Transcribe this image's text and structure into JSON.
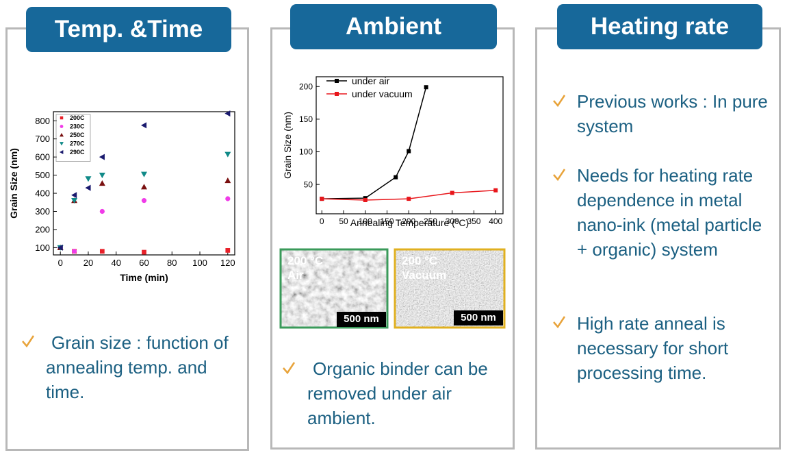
{
  "panels": [
    {
      "title": "Temp. &Time",
      "bullets": [
        "Grain size : function of annealing temp. and time."
      ]
    },
    {
      "title": "Ambient",
      "images": [
        {
          "temp": "200 °C",
          "ambient": "Air",
          "scale": "500 nm"
        },
        {
          "temp": "200 °C",
          "ambient": "Vacuum",
          "scale": "500 nm"
        }
      ],
      "bullets": [
        "Organic binder can be removed under air ambient."
      ]
    },
    {
      "title": "Heating rate",
      "bullets": [
        "Previous works : In pure system",
        "Needs for heating rate dependence in metal nano-ink (metal particle + organic) system",
        "High rate anneal is necessary for short processing time."
      ]
    }
  ],
  "chart_data": [
    {
      "type": "scatter",
      "x_label": "Time (min)",
      "y_label": "Grain Size (nm)",
      "xlim": [
        -5,
        125
      ],
      "ylim": [
        60,
        850
      ],
      "xticks": [
        0,
        20,
        40,
        60,
        80,
        100,
        120
      ],
      "yticks": [
        100,
        200,
        300,
        400,
        500,
        600,
        700,
        800
      ],
      "legend": "top-left",
      "series": [
        {
          "name": "200C",
          "color": "#e8212a",
          "marker": "square",
          "x": [
            0,
            10,
            30,
            60,
            120
          ],
          "values": [
            100,
            80,
            80,
            75,
            85
          ]
        },
        {
          "name": "230C",
          "color": "#f03ce8",
          "marker": "circle",
          "x": [
            0,
            10,
            30,
            60,
            120
          ],
          "values": [
            100,
            80,
            300,
            360,
            370
          ]
        },
        {
          "name": "250C",
          "color": "#7a1010",
          "marker": "triangle-up",
          "x": [
            0,
            10,
            30,
            60,
            120
          ],
          "values": [
            100,
            360,
            455,
            435,
            470
          ]
        },
        {
          "name": "270C",
          "color": "#108a88",
          "marker": "triangle-down",
          "x": [
            0,
            10,
            20,
            30,
            60,
            120
          ],
          "values": [
            100,
            360,
            480,
            500,
            505,
            615
          ]
        },
        {
          "name": "290C",
          "color": "#1a1a6e",
          "marker": "triangle-left",
          "x": [
            0,
            10,
            20,
            30,
            60,
            120
          ],
          "values": [
            100,
            390,
            430,
            600,
            775,
            840
          ]
        }
      ]
    },
    {
      "type": "line",
      "x_label": "Annealing Temperature (°C)",
      "y_label": "Grain Size (nm)",
      "xlim": [
        -13,
        417
      ],
      "ylim": [
        5,
        215
      ],
      "xticks": [
        0,
        50,
        100,
        150,
        200,
        250,
        300,
        350,
        400
      ],
      "yticks": [
        50,
        100,
        150,
        200
      ],
      "legend": "top-left",
      "series": [
        {
          "name": "under air",
          "color": "#000000",
          "marker": "square",
          "x": [
            0,
            100,
            170,
            200,
            240
          ],
          "values": [
            28,
            29,
            61,
            101,
            199
          ]
        },
        {
          "name": "under vacuum",
          "color": "#e8161b",
          "marker": "square",
          "x": [
            0,
            100,
            200,
            300,
            400
          ],
          "values": [
            28,
            26,
            28,
            37,
            41
          ]
        }
      ]
    }
  ]
}
